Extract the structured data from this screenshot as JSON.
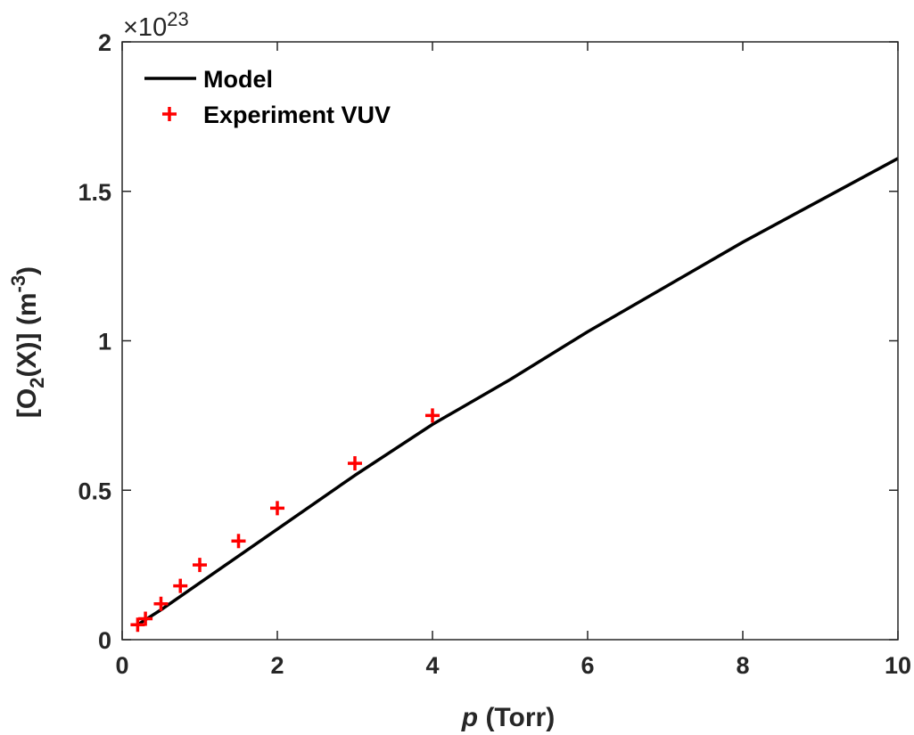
{
  "chart_data": {
    "type": "line",
    "x_tick_labels": [
      "0",
      "2",
      "4",
      "6",
      "8",
      "10"
    ],
    "y_tick_labels": [
      "0",
      "0.5",
      "1",
      "1.5",
      "2"
    ],
    "xlim": [
      0,
      10
    ],
    "ylim": [
      0,
      2
    ],
    "y_exponent": {
      "base": "×10",
      "power": "23"
    },
    "xlabel": {
      "italic": "p",
      "rest": " (Torr)"
    },
    "ylabel": {
      "prefix": "[O",
      "sub": "2",
      "middle": "(X)] (m",
      "sup": "-3",
      "suffix": ")"
    },
    "legend_position": "top-left",
    "grid": false,
    "series": [
      {
        "name": "Model",
        "style": "line",
        "color": "#000000",
        "x": [
          0.2,
          0.5,
          1,
          2,
          3,
          4,
          5,
          6,
          7,
          8,
          9,
          10
        ],
        "y": [
          0.05,
          0.1,
          0.19,
          0.37,
          0.55,
          0.72,
          0.87,
          1.03,
          1.18,
          1.33,
          1.47,
          1.61
        ]
      },
      {
        "name": "Experiment VUV",
        "style": "marker-plus",
        "color": "#ff0000",
        "x": [
          0.2,
          0.3,
          0.5,
          0.75,
          1,
          1.5,
          2,
          3,
          4
        ],
        "y": [
          0.05,
          0.07,
          0.12,
          0.18,
          0.25,
          0.33,
          0.44,
          0.59,
          0.75
        ]
      }
    ]
  }
}
